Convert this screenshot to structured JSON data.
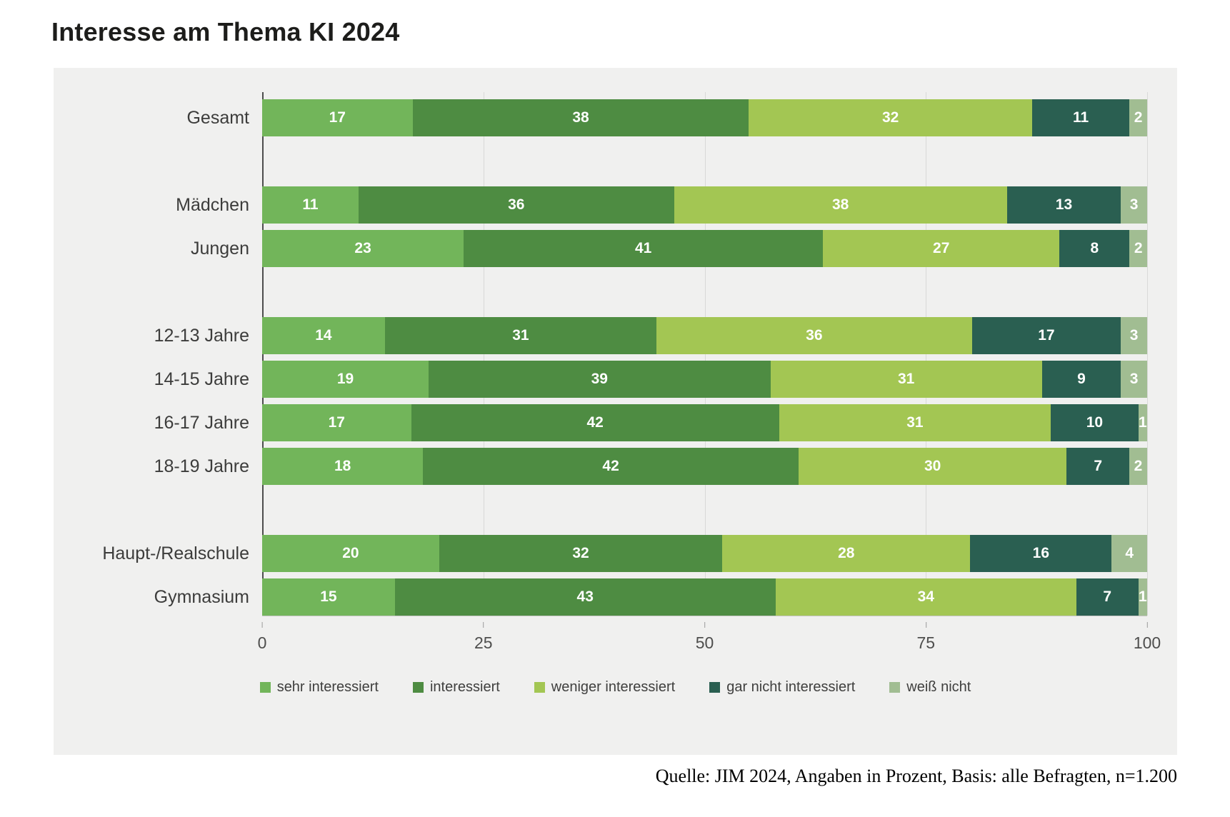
{
  "title": "Interesse am Thema KI 2024",
  "source": "Quelle: JIM 2024, Angaben in Prozent, Basis: alle Befragten, n=1.200",
  "chart_data": {
    "type": "bar",
    "stacked": true,
    "orientation": "horizontal",
    "title": "Interesse am Thema KI 2024",
    "categories": [
      "Gesamt",
      "Mädchen",
      "Jungen",
      "12-13 Jahre",
      "14-15 Jahre",
      "16-17 Jahre",
      "18-19 Jahre",
      "Haupt-/Realschule",
      "Gymnasium"
    ],
    "group_sizes": [
      1,
      2,
      4,
      2
    ],
    "series": [
      {
        "name": "sehr interessiert",
        "color": "#72b55a",
        "values": [
          17,
          11,
          23,
          14,
          19,
          17,
          18,
          20,
          15
        ]
      },
      {
        "name": "interessiert",
        "color": "#4e8c42",
        "values": [
          38,
          36,
          41,
          31,
          39,
          42,
          42,
          32,
          43
        ]
      },
      {
        "name": "weniger interessiert",
        "color": "#a3c653",
        "values": [
          32,
          38,
          27,
          36,
          31,
          31,
          30,
          28,
          34
        ]
      },
      {
        "name": "gar nicht interessiert",
        "color": "#2a5f51",
        "values": [
          11,
          13,
          8,
          17,
          9,
          10,
          7,
          16,
          7
        ]
      },
      {
        "name": "weiß nicht",
        "color": "#a1bd92",
        "values": [
          2,
          3,
          2,
          3,
          3,
          1,
          2,
          4,
          1
        ]
      }
    ],
    "x_ticks": [
      0,
      25,
      50,
      75,
      100
    ],
    "xlim": [
      0,
      100
    ],
    "grid": true,
    "legend_position": "bottom",
    "value_labels": "inside-white"
  }
}
